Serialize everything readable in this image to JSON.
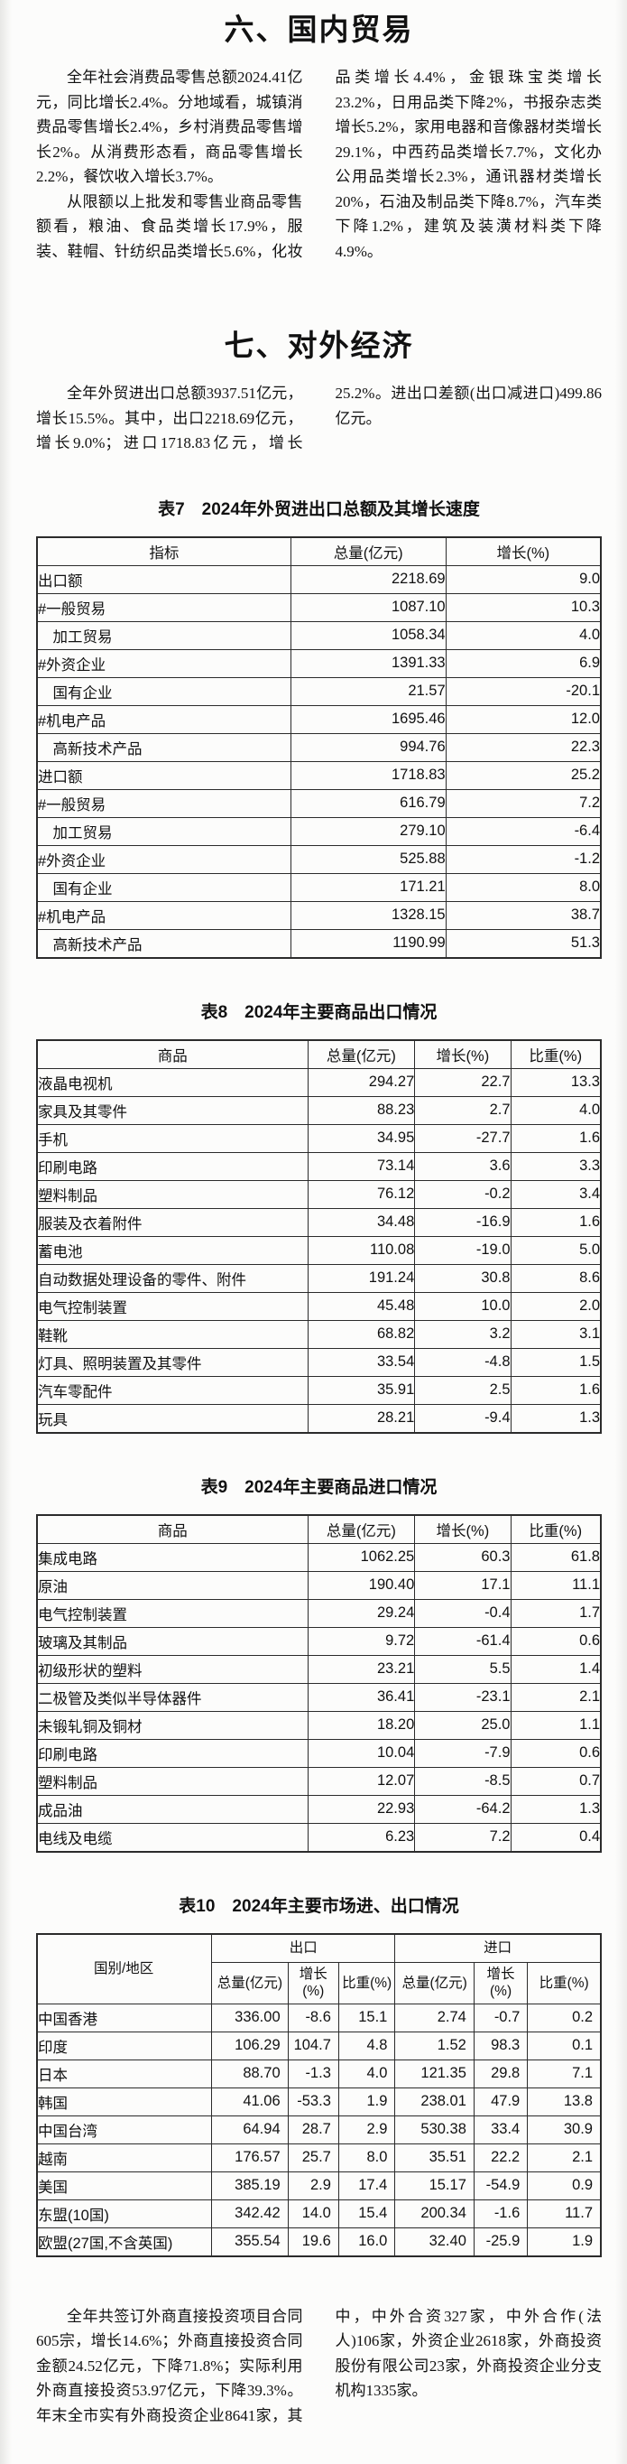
{
  "section6": {
    "title": "六、国内贸易",
    "paragraphs": [
      "全年社会消费品零售总额2024.41亿元，同比增长2.4%。分地域看，城镇消费品零售增长2.4%，乡村消费品零售增长2%。从消费形态看，商品零售增长2.2%，餐饮收入增长3.7%。",
      "从限额以上批发和零售业商品零售额看，粮油、食品类增长17.9%，服装、鞋帽、针纺织品类增长5.6%，化妆品类增长4.4%，金银珠宝类增长23.2%，日用品类下降2%，书报杂志类增长5.2%，家用电器和音像器材类增长29.1%，中西药品类增长7.7%，文化办公用品类增长2.3%，通讯器材类增长20%，石油及制品类下降8.7%，汽车类下降1.2%，建筑及装潢材料类下降4.9%。"
    ]
  },
  "section7": {
    "title": "七、对外经济",
    "intro": "全年外贸进出口总额3937.51亿元，增长15.5%。其中，出口2218.69亿元，增长9.0%；进口1718.83亿元，增长25.2%。进出口差额(出口减进口)499.86亿元。",
    "closing": "全年共签订外商直接投资项目合同605宗，增长14.6%；外商直接投资合同金额24.52亿元，下降71.8%；实际利用外商直接投资53.97亿元，下降39.3%。年末全市实有外商投资企业8641家，其中，中外合资327家，中外合作(法人)106家，外资企业2618家，外商投资股份有限公司23家，外商投资企业分支机构1335家。"
  },
  "tables": {
    "t7": {
      "title": "表7　2024年外贸进出口总额及其增长速度",
      "columns": [
        "指标",
        "总量(亿元)",
        "增长(%)"
      ],
      "rows": [
        [
          "出口额",
          "2218.69",
          "9.0"
        ],
        [
          "#一般贸易",
          "1087.10",
          "10.3"
        ],
        [
          "　加工贸易",
          "1058.34",
          "4.0"
        ],
        [
          "#外资企业",
          "1391.33",
          "6.9"
        ],
        [
          "　国有企业",
          "21.57",
          "-20.1"
        ],
        [
          "#机电产品",
          "1695.46",
          "12.0"
        ],
        [
          "　高新技术产品",
          "994.76",
          "22.3"
        ],
        [
          "进口额",
          "1718.83",
          "25.2"
        ],
        [
          "#一般贸易",
          "616.79",
          "7.2"
        ],
        [
          "　加工贸易",
          "279.10",
          "-6.4"
        ],
        [
          "#外资企业",
          "525.88",
          "-1.2"
        ],
        [
          "　国有企业",
          "171.21",
          "8.0"
        ],
        [
          "#机电产品",
          "1328.15",
          "38.7"
        ],
        [
          "　高新技术产品",
          "1190.99",
          "51.3"
        ]
      ]
    },
    "t8": {
      "title": "表8　2024年主要商品出口情况",
      "columns": [
        "商品",
        "总量(亿元)",
        "增长(%)",
        "比重(%)"
      ],
      "rows": [
        [
          "液晶电视机",
          "294.27",
          "22.7",
          "13.3"
        ],
        [
          "家具及其零件",
          "88.23",
          "2.7",
          "4.0"
        ],
        [
          "手机",
          "34.95",
          "-27.7",
          "1.6"
        ],
        [
          "印刷电路",
          "73.14",
          "3.6",
          "3.3"
        ],
        [
          "塑料制品",
          "76.12",
          "-0.2",
          "3.4"
        ],
        [
          "服装及衣着附件",
          "34.48",
          "-16.9",
          "1.6"
        ],
        [
          "蓄电池",
          "110.08",
          "-19.0",
          "5.0"
        ],
        [
          "自动数据处理设备的零件、附件",
          "191.24",
          "30.8",
          "8.6"
        ],
        [
          "电气控制装置",
          "45.48",
          "10.0",
          "2.0"
        ],
        [
          "鞋靴",
          "68.82",
          "3.2",
          "3.1"
        ],
        [
          "灯具、照明装置及其零件",
          "33.54",
          "-4.8",
          "1.5"
        ],
        [
          "汽车零配件",
          "35.91",
          "2.5",
          "1.6"
        ],
        [
          "玩具",
          "28.21",
          "-9.4",
          "1.3"
        ]
      ]
    },
    "t9": {
      "title": "表9　2024年主要商品进口情况",
      "columns": [
        "商品",
        "总量(亿元)",
        "增长(%)",
        "比重(%)"
      ],
      "rows": [
        [
          "集成电路",
          "1062.25",
          "60.3",
          "61.8"
        ],
        [
          "原油",
          "190.40",
          "17.1",
          "11.1"
        ],
        [
          "电气控制装置",
          "29.24",
          "-0.4",
          "1.7"
        ],
        [
          "玻璃及其制品",
          "9.72",
          "-61.4",
          "0.6"
        ],
        [
          "初级形状的塑料",
          "23.21",
          "5.5",
          "1.4"
        ],
        [
          "二极管及类似半导体器件",
          "36.41",
          "-23.1",
          "2.1"
        ],
        [
          "未锻轧铜及铜材",
          "18.20",
          "25.0",
          "1.1"
        ],
        [
          "印刷电路",
          "10.04",
          "-7.9",
          "0.6"
        ],
        [
          "塑料制品",
          "12.07",
          "-8.5",
          "0.7"
        ],
        [
          "成品油",
          "22.93",
          "-64.2",
          "1.3"
        ],
        [
          "电线及电缆",
          "6.23",
          "7.2",
          "0.4"
        ]
      ]
    },
    "t10": {
      "title": "表10　2024年主要市场进、出口情况",
      "stub_header": "国别/地区",
      "export_group": "出口",
      "import_group": "进口",
      "sub_columns": [
        "总量(亿元)",
        "增长(%)",
        "比重(%)",
        "总量(亿元)",
        "增长(%)",
        "比重(%)"
      ],
      "rows": [
        [
          "中国香港",
          "336.00",
          "-8.6",
          "15.1",
          "2.74",
          "-0.7",
          "0.2"
        ],
        [
          "印度",
          "106.29",
          "104.7",
          "4.8",
          "1.52",
          "98.3",
          "0.1"
        ],
        [
          "日本",
          "88.70",
          "-1.3",
          "4.0",
          "121.35",
          "29.8",
          "7.1"
        ],
        [
          "韩国",
          "41.06",
          "-53.3",
          "1.9",
          "238.01",
          "47.9",
          "13.8"
        ],
        [
          "中国台湾",
          "64.94",
          "28.7",
          "2.9",
          "530.38",
          "33.4",
          "30.9"
        ],
        [
          "越南",
          "176.57",
          "25.7",
          "8.0",
          "35.51",
          "22.2",
          "2.1"
        ],
        [
          "美国",
          "385.19",
          "2.9",
          "17.4",
          "15.17",
          "-54.9",
          "0.9"
        ],
        [
          "东盟(10国)",
          "342.42",
          "14.0",
          "15.4",
          "200.34",
          "-1.6",
          "11.7"
        ],
        [
          "欧盟(27国,不含英国)",
          "355.54",
          "19.6",
          "16.0",
          "32.40",
          "-25.9",
          "1.9"
        ]
      ]
    }
  }
}
